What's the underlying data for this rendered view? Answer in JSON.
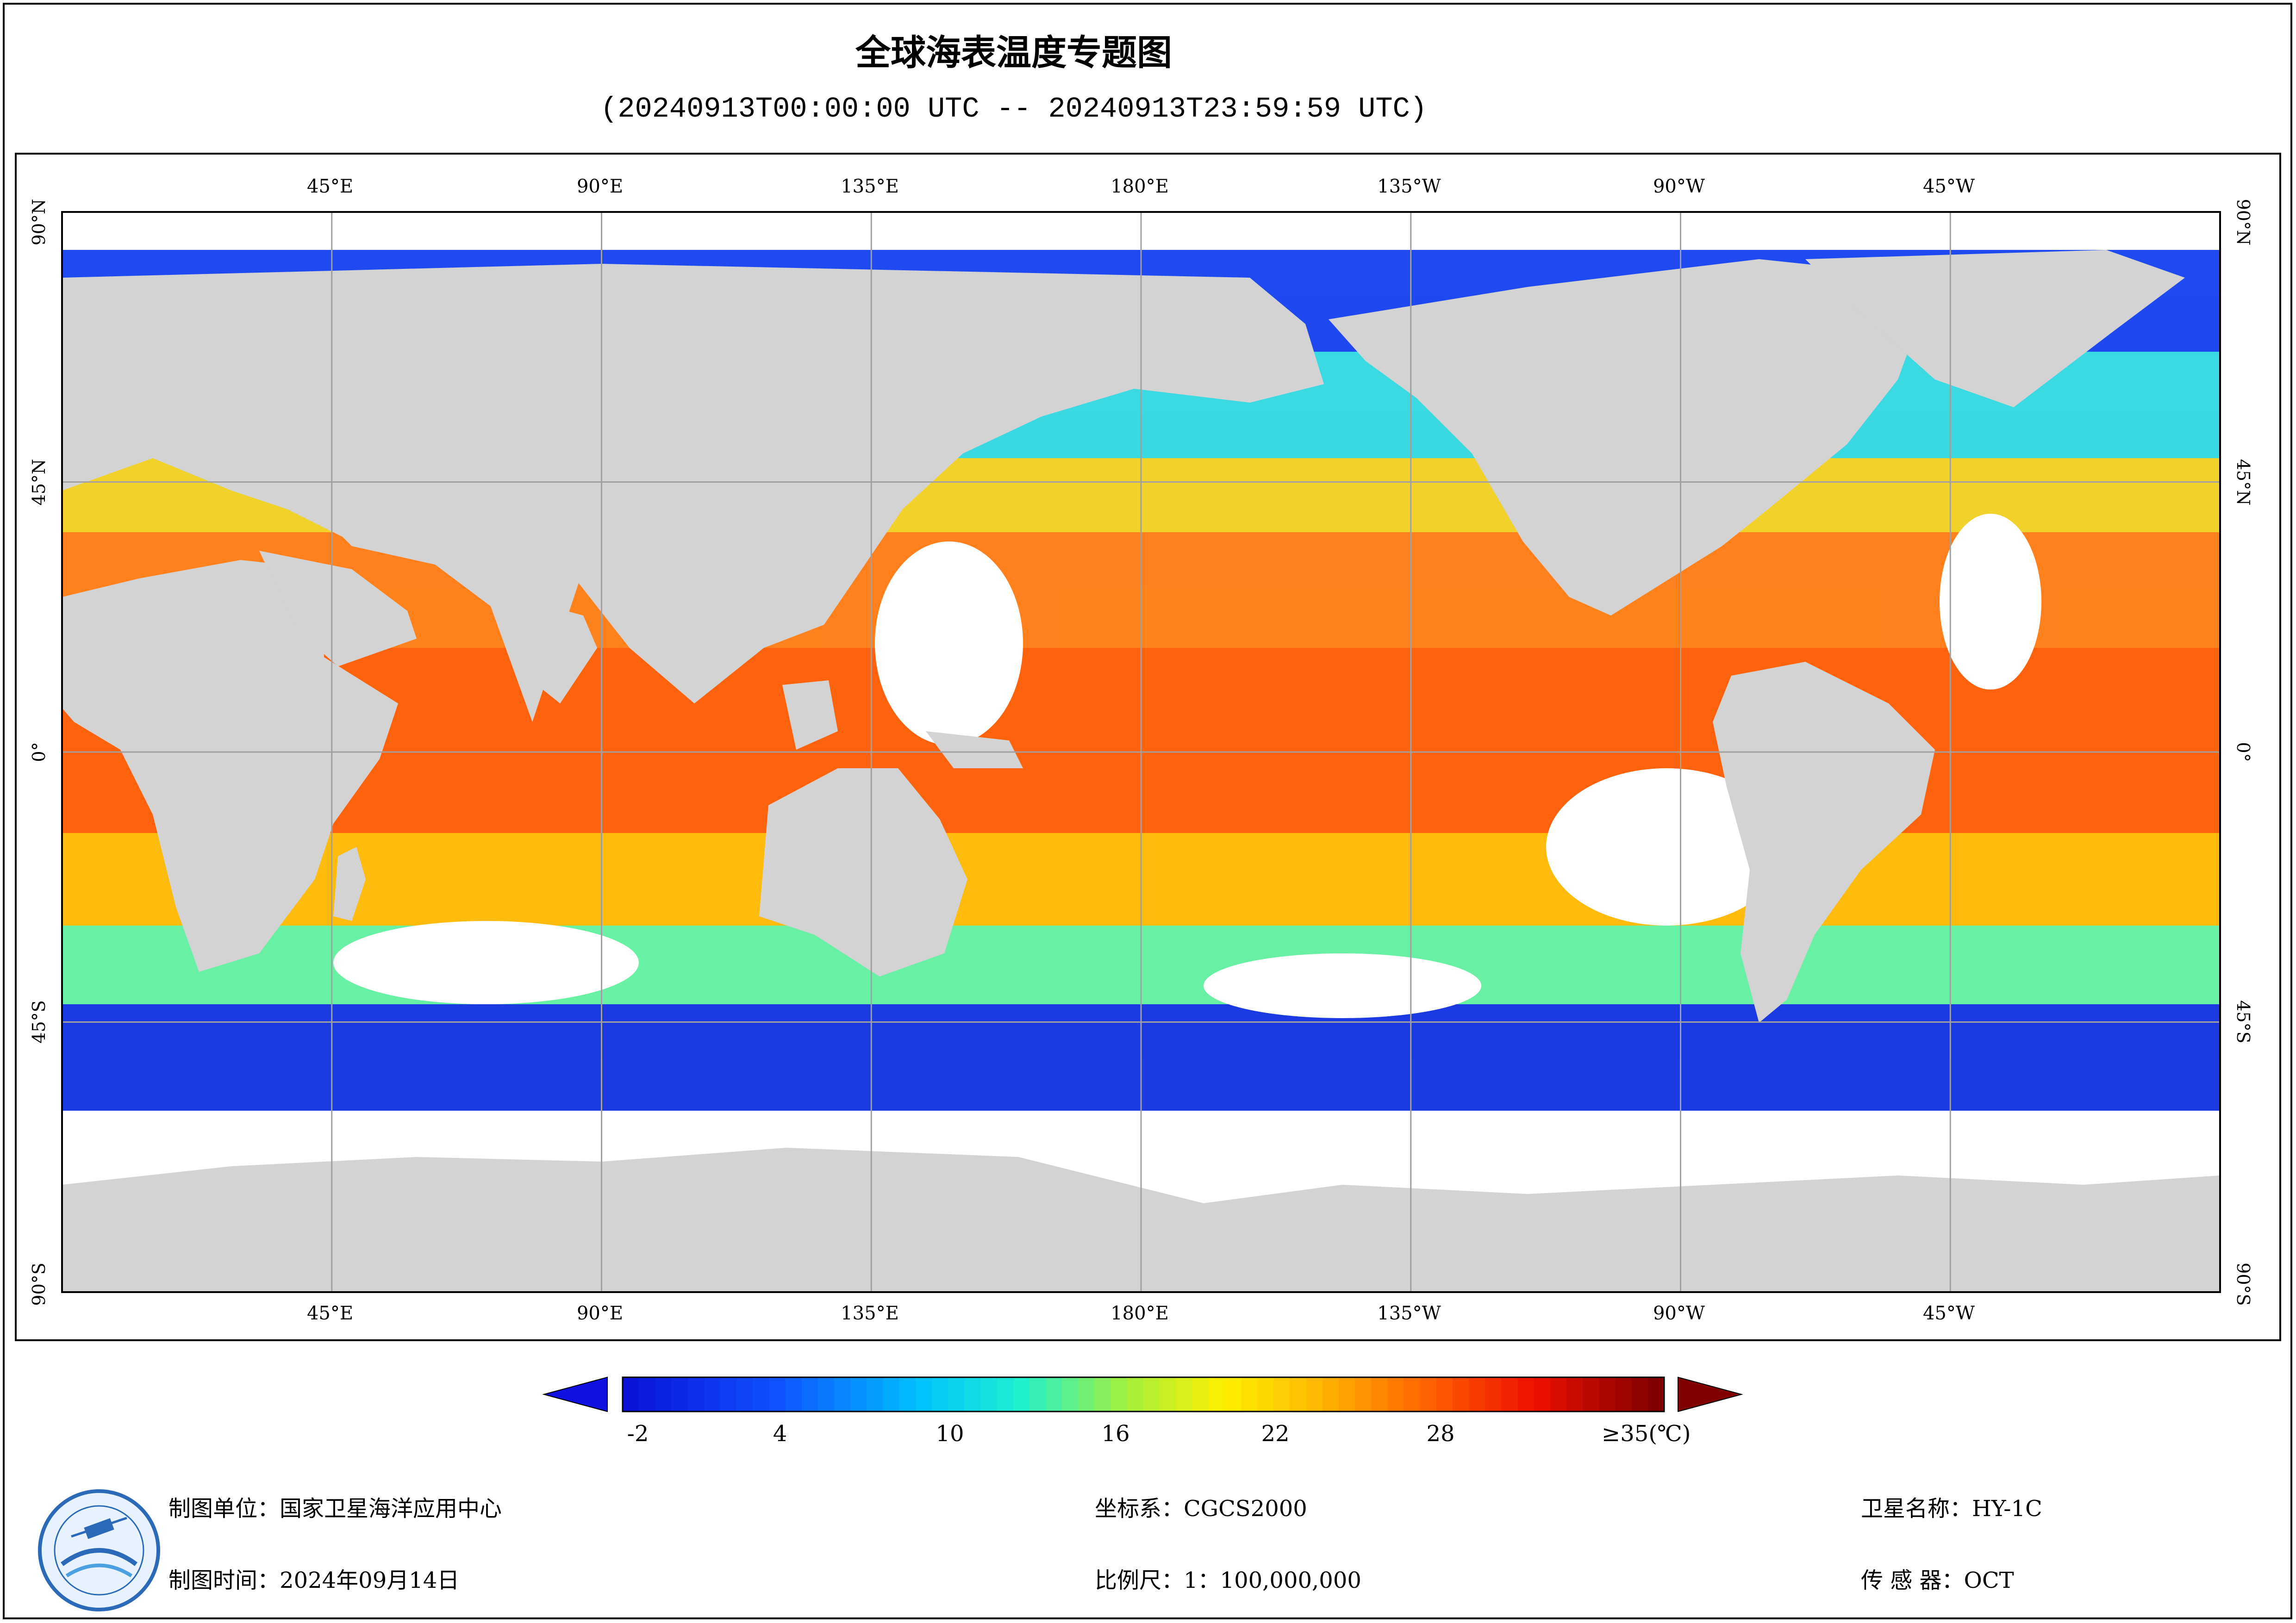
{
  "header": {
    "title": "全球海表温度专题图",
    "subtitle": "(20240913T00:00:00 UTC -- 20240913T23:59:59 UTC)"
  },
  "map": {
    "lon_labels": [
      "45°E",
      "90°E",
      "135°E",
      "180°E",
      "135°W",
      "90°W",
      "45°W"
    ],
    "lat_labels": [
      "90°N",
      "45°N",
      "0°",
      "45°S",
      "90°S"
    ],
    "land_color": "#d3d3d3",
    "ocean_no_data_color": "#ffffff",
    "grid_color": "#a0a0a0"
  },
  "colorbar": {
    "tick_labels": [
      "-2",
      "4",
      "10",
      "16",
      "22",
      "28"
    ],
    "max_label": "≥35(℃)",
    "min_value": -2,
    "max_value": 35,
    "under_color": "#1010e0",
    "over_color": "#800000"
  },
  "footer": {
    "org": "制图单位：国家卫星海洋应用中心",
    "time": "制图时间：2024年09月14日",
    "crs": "坐标系：CGCS2000",
    "scale": "比例尺：1：100,000,000",
    "satellite": "卫星名称：HY-1C",
    "sensor": "传  感  器：OCT"
  },
  "logo": {
    "icon": "nsoas-logo-icon"
  }
}
